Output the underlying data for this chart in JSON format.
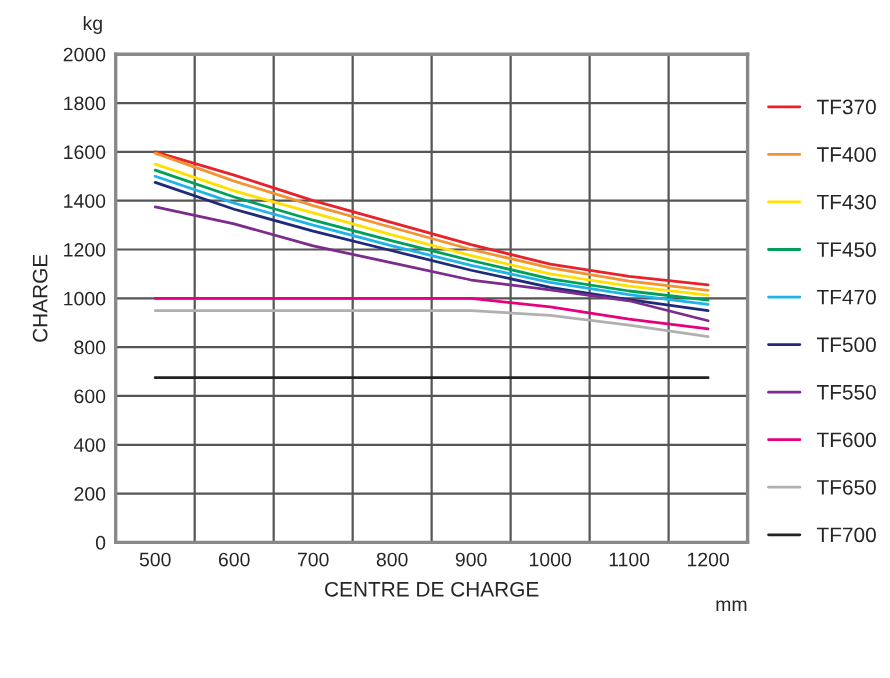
{
  "chart_data": {
    "type": "line",
    "xlabel": "CENTRE DE CHARGE",
    "ylabel": "CHARGE",
    "annotations": [
      "kg",
      "mm"
    ],
    "x": [
      500,
      600,
      700,
      800,
      900,
      1000,
      1100,
      1200
    ],
    "series": [
      {
        "name": "TF370",
        "color": "#e8212a",
        "values": [
          1600,
          1505,
          1400,
          1310,
          1220,
          1140,
          1090,
          1055
        ]
      },
      {
        "name": "TF400",
        "color": "#f39433",
        "values": [
          1595,
          1480,
          1380,
          1290,
          1200,
          1125,
          1070,
          1033
        ]
      },
      {
        "name": "TF430",
        "color": "#ffe000",
        "values": [
          1550,
          1440,
          1350,
          1260,
          1175,
          1100,
          1050,
          1013
        ]
      },
      {
        "name": "TF450",
        "color": "#00a05a",
        "values": [
          1525,
          1415,
          1320,
          1235,
          1155,
          1080,
          1030,
          993
        ]
      },
      {
        "name": "TF470",
        "color": "#1eb4e8",
        "values": [
          1500,
          1390,
          1300,
          1215,
          1135,
          1065,
          1015,
          975
        ]
      },
      {
        "name": "TF500",
        "color": "#1f2a7a",
        "values": [
          1475,
          1365,
          1275,
          1195,
          1115,
          1045,
          995,
          950
        ]
      },
      {
        "name": "TF550",
        "color": "#7b2c8c",
        "values": [
          1375,
          1305,
          1215,
          1145,
          1075,
          1035,
          990,
          908
        ]
      },
      {
        "name": "TF600",
        "color": "#e6007e",
        "values": [
          1000,
          1000,
          1000,
          1000,
          1000,
          965,
          915,
          875
        ]
      },
      {
        "name": "TF650",
        "color": "#b0b0b0",
        "values": [
          950,
          950,
          950,
          950,
          950,
          930,
          890,
          843
        ]
      },
      {
        "name": "TF700",
        "color": "#222222",
        "values": [
          675,
          675,
          675,
          675,
          675,
          675,
          675,
          675
        ]
      }
    ],
    "xlim": [
      450,
      1250
    ],
    "xticks": [
      500,
      {
        "value": 550,
        "label": null
      },
      600,
      {
        "value": 650,
        "label": null
      },
      700,
      {
        "value": 750,
        "label": null
      },
      800,
      {
        "value": 850,
        "label": null
      },
      900,
      {
        "value": 950,
        "label": null
      },
      1000,
      {
        "value": 1050,
        "label": null
      },
      1100,
      {
        "value": 1150,
        "label": null
      },
      1200
    ],
    "ylim": [
      0,
      2000
    ],
    "yticks": [
      0,
      200,
      400,
      600,
      800,
      1000,
      1200,
      1400,
      1600,
      1800,
      2000
    ],
    "grid": true,
    "legend": "right",
    "marker": "none",
    "line_style": "solid"
  }
}
